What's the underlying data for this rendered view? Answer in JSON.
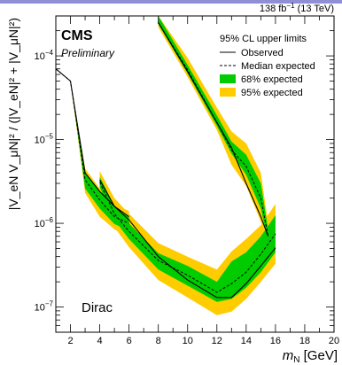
{
  "slide": {
    "topbar_color": "#8f8fd6"
  },
  "chart_data": {
    "type": "line",
    "experiment": "CMS",
    "status": "Preliminary",
    "lumi": {
      "value": "138",
      "unit": "fb",
      "exponent": "−1",
      "energy": "(13 TeV)"
    },
    "legend": {
      "title": "95% CL upper limits",
      "position": "top-right",
      "items": [
        "Observed",
        "Median expected",
        "68% expected",
        "95% expected"
      ]
    },
    "annotation": "Dirac",
    "xlabel": "m",
    "xlabel_sub": "N",
    "xlabel_unit": "[GeV]",
    "ylabel": "|V_eN V_μN|² / (|V_eN|² + |V_μN|²)",
    "xlim": [
      1,
      20
    ],
    "ylim": [
      5e-08,
      0.0003
    ],
    "yscale": "log",
    "x_ticks": [
      2,
      4,
      6,
      8,
      10,
      12,
      14,
      16,
      18,
      20
    ],
    "y_ticks": [
      {
        "value": 1e-07,
        "base": "10",
        "exp": "−7"
      },
      {
        "value": 1e-06,
        "base": "10",
        "exp": "−6"
      },
      {
        "value": 1e-05,
        "base": "10",
        "exp": "−5"
      },
      {
        "value": 0.0001,
        "base": "10",
        "exp": "−4"
      }
    ],
    "colors": {
      "band68": "#00cc00",
      "band95": "#ffcc00",
      "line": "#000000"
    },
    "segments": [
      {
        "x": [
          1,
          2,
          3,
          4,
          5,
          6
        ],
        "observed": [
          7e-05,
          5e-05,
          4e-06,
          2.4e-06,
          1.6e-06,
          1.2e-06
        ],
        "expected": [
          7e-05,
          5e-05,
          3.3e-06,
          1.9e-06,
          1.2e-06,
          1e-06
        ],
        "band68_lo": [
          7e-05,
          5e-05,
          2.6e-06,
          1.5e-06,
          9.8e-07,
          8.2e-07
        ],
        "band68_hi": [
          7e-05,
          5e-05,
          4.1e-06,
          2.4e-06,
          1.5e-06,
          1.2e-06
        ],
        "band95_lo": [
          7e-05,
          5e-05,
          2.3e-06,
          1.2e-06,
          8.5e-07,
          6.6e-07
        ],
        "band95_hi": [
          7e-05,
          5e-05,
          4.5e-06,
          2.6e-06,
          1.7e-06,
          1.4e-06
        ]
      },
      {
        "x": [
          4,
          5,
          6,
          8,
          10,
          12,
          13,
          14,
          15,
          16
        ],
        "observed": [
          3.3e-06,
          1.6e-06,
          1.1e-06,
          4e-07,
          2.1e-07,
          1.3e-07,
          1.3e-07,
          1.9e-07,
          3.1e-07,
          5.1e-07
        ],
        "expected": [
          3.1e-06,
          1.3e-06,
          8e-07,
          3.6e-07,
          2.4e-07,
          1.5e-07,
          1.9e-07,
          2.6e-07,
          4.3e-07,
          7.5e-07
        ],
        "band68_lo": [
          2.7e-06,
          1.1e-06,
          6.5e-07,
          2.8e-07,
          1.8e-07,
          1.15e-07,
          1.25e-07,
          1.7e-07,
          2.6e-07,
          4.5e-07
        ],
        "band68_hi": [
          3.6e-06,
          1.6e-06,
          1e-06,
          4.4e-07,
          3.1e-07,
          2e-07,
          3.5e-07,
          4.5e-07,
          7e-07,
          1.25e-06
        ],
        "band95_lo": [
          2.3e-06,
          9e-07,
          5.2e-07,
          2.1e-07,
          1.3e-07,
          8e-08,
          8.8e-08,
          1.25e-07,
          2e-07,
          3.3e-07
        ],
        "band95_hi": [
          4.2e-06,
          2e-06,
          1.3e-06,
          5.8e-07,
          4e-07,
          2.8e-07,
          4.6e-07,
          6.5e-07,
          9.5e-07,
          1.7e-06
        ]
      },
      {
        "x": [
          8,
          10,
          12,
          13,
          14,
          15,
          15.5
        ],
        "observed": [
          0.00025,
          6.5e-05,
          1.6e-05,
          8e-06,
          3e-06,
          1.2e-06,
          7e-07
        ],
        "expected": [
          0.00025,
          6.8e-05,
          1.6e-05,
          7.5e-06,
          4.8e-06,
          2e-06,
          7e-07
        ],
        "band68_lo": [
          0.00024,
          6.2e-05,
          1.45e-05,
          6.8e-06,
          3.8e-06,
          1.5e-06,
          6e-07
        ],
        "band68_hi": [
          0.0003,
          7.8e-05,
          1.95e-05,
          9.5e-06,
          6.6e-06,
          3e-06,
          8.5e-07
        ],
        "band95_lo": [
          0.00022,
          5.6e-05,
          1.3e-05,
          5e-06,
          2.8e-06,
          1.05e-06,
          4.5e-07
        ],
        "band95_hi": [
          0.0003,
          9.5e-05,
          2.4e-05,
          1.25e-05,
          9e-06,
          4e-06,
          1e-06
        ]
      }
    ]
  }
}
